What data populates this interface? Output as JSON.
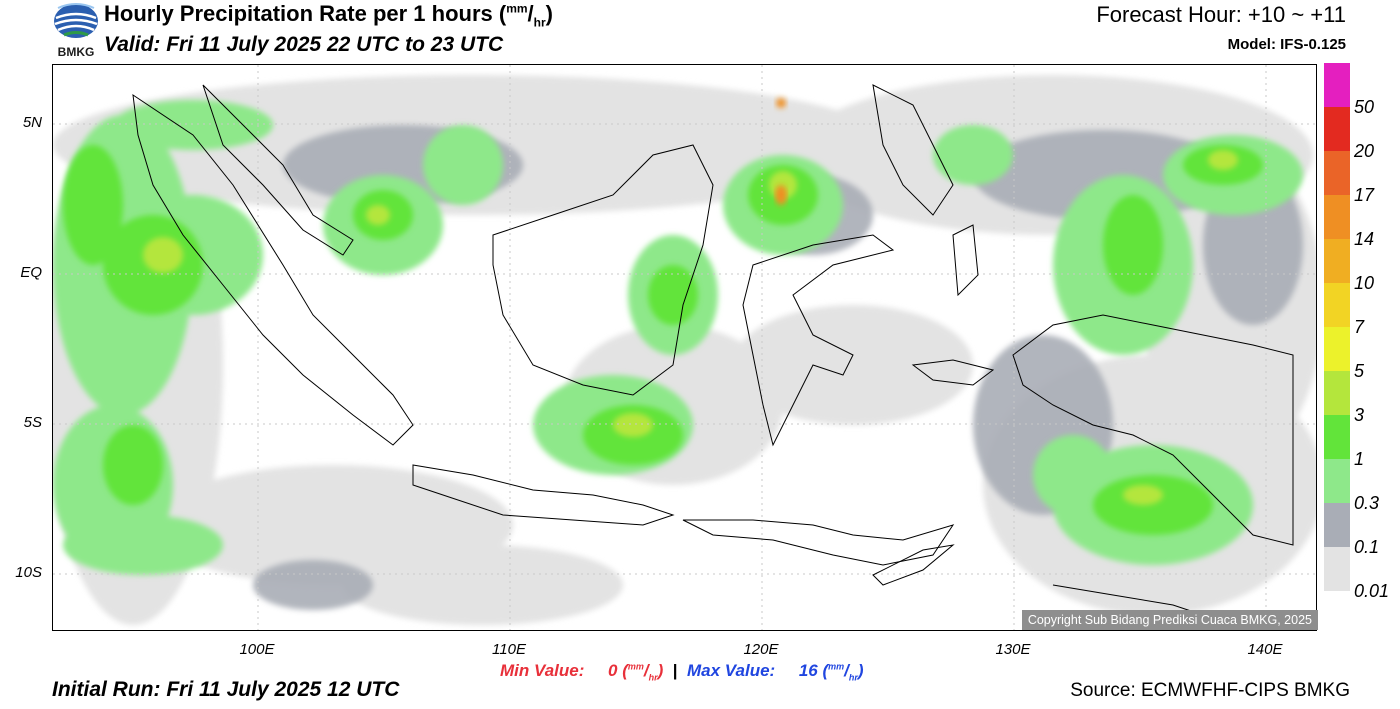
{
  "header": {
    "title": "Hourly Precipitation Rate per 1 hours",
    "title_unit_open": "(",
    "title_unit_num": "mm",
    "title_unit_sep": "/",
    "title_unit_den": "hr",
    "title_unit_close": ")",
    "valid": "Valid: Fri 11 July 2025 22 UTC to 23 UTC",
    "forecast_hour": "Forecast Hour: +10 ~ +11",
    "model": "Model: IFS-0.125",
    "logo_text": "BMKG"
  },
  "map": {
    "lat_labels": [
      "5N",
      "EQ",
      "5S",
      "10S"
    ],
    "lon_labels": [
      "100E",
      "110E",
      "120E",
      "130E",
      "140E"
    ],
    "copyright": "Copyright Sub Bidang Prediksi Cuaca BMKG, 2025"
  },
  "colorbar": {
    "labels": [
      "50",
      "20",
      "17",
      "14",
      "10",
      "7",
      "5",
      "3",
      "1",
      "0.3",
      "0.1",
      "0.01"
    ],
    "colors": [
      "#e41fbf",
      "#e32a20",
      "#ea6428",
      "#ef8f23",
      "#f0ae22",
      "#f2d424",
      "#ecf22b",
      "#b4e63c",
      "#62e43a",
      "#8ee88a",
      "#a9adb6",
      "#e3e3e3"
    ]
  },
  "footer": {
    "min_label": "Min Value:",
    "min_value": "0",
    "max_label": "Max Value:",
    "max_value": "16",
    "separator": "|",
    "unit_num": "mm",
    "unit_den": "hr",
    "initial_run": "Initial Run: Fri 11 July 2025 12 UTC",
    "source": "Source: ECMWFHF-CIPS BMKG"
  }
}
